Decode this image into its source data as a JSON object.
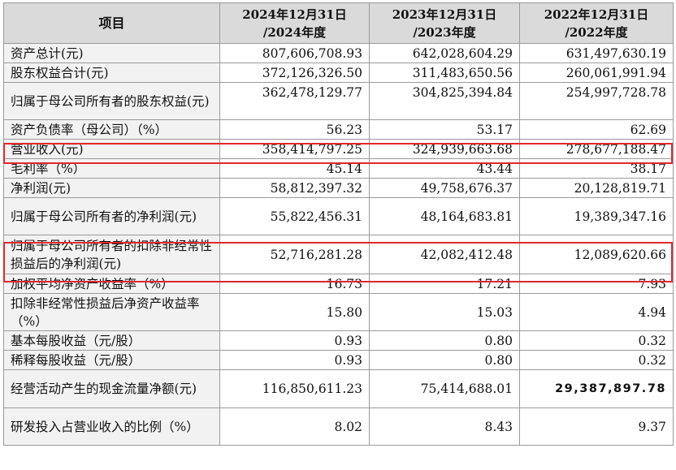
{
  "table": {
    "headers": [
      {
        "line1": "项目",
        "line2": ""
      },
      {
        "line1": "2024年12月31日",
        "line2": "/2024年度"
      },
      {
        "line1": "2023年12月31日",
        "line2": "/2023年度"
      },
      {
        "line1": "2022年12月31日",
        "line2": "/2022年度"
      }
    ],
    "rows": [
      {
        "label": "资产总计(元)",
        "v2024": "807,606,708.93",
        "v2023": "642,028,604.29",
        "v2022": "631,497,630.19"
      },
      {
        "label": "股东权益合计(元)",
        "v2024": "372,126,326.50",
        "v2023": "311,483,650.56",
        "v2022": "260,061,991.94"
      },
      {
        "label": "归属于母公司所有者的股东权益(元)",
        "v2024": "362,478,129.77",
        "v2023": "304,825,394.84",
        "v2022": "254,997,728.78"
      },
      {
        "label": "资产负债率（母公司）（%）",
        "v2024": "56.23",
        "v2023": "53.17",
        "v2022": "62.69"
      },
      {
        "label": "营业收入(元)",
        "v2024": "358,414,797.25",
        "v2023": "324,939,663.68",
        "v2022": "278,677,188.47"
      },
      {
        "label": "毛利率（%）",
        "v2024": "45.14",
        "v2023": "43.44",
        "v2022": "38.17"
      },
      {
        "label": "净利润(元)",
        "v2024": "58,812,397.32",
        "v2023": "49,758,676.37",
        "v2022": "20,128,819.71"
      },
      {
        "label": "归属于母公司所有者的净利润(元)",
        "v2024": "55,822,456.31",
        "v2023": "48,164,683.81",
        "v2022": "19,389,347.16"
      },
      {
        "label": "归属于母公司所有者的扣除非经常性损益后的净利润(元)",
        "v2024": "52,716,281.28",
        "v2023": "42,082,412.48",
        "v2022": "12,089,620.66"
      },
      {
        "label": "加权平均净资产收益率（%）",
        "v2024": "16.73",
        "v2023": "17.21",
        "v2022": "7.93"
      },
      {
        "label": "扣除非经常性损益后净资产收益率（%）",
        "v2024": "15.80",
        "v2023": "15.03",
        "v2022": "4.94"
      },
      {
        "label": "基本每股收益（元/股）",
        "v2024": "0.93",
        "v2023": "0.80",
        "v2022": "0.32"
      },
      {
        "label": "稀释每股收益（元/股）",
        "v2024": "0.93",
        "v2023": "0.80",
        "v2022": "0.32"
      },
      {
        "label": "经营活动产生的现金流量净额(元)",
        "v2024": "116,850,611.23",
        "v2023": "75,414,688.01",
        "v2022": "29,387,897.78"
      },
      {
        "label": "研发投入占营业收入的比例（%）",
        "v2024": "8.02",
        "v2023": "8.43",
        "v2022": "9.37"
      }
    ],
    "highlight_color": "#e0282e"
  }
}
